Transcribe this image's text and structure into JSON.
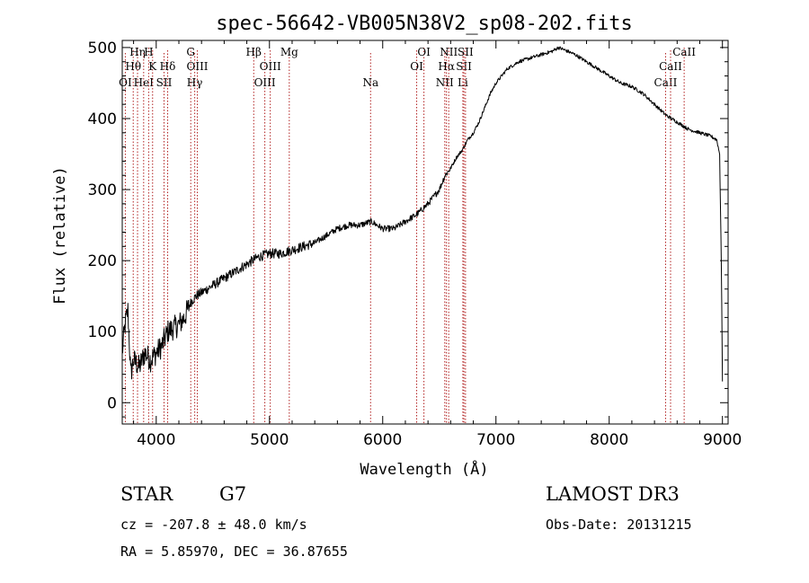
{
  "chart_data": {
    "type": "line",
    "title": "spec-56642-VB005N38V2_sp08-202.fits",
    "xlabel": "Wavelength (Å)",
    "ylabel": "Flux (relative)",
    "xlim": [
      3700,
      9050
    ],
    "ylim": [
      -30,
      510
    ],
    "xticks": [
      4000,
      5000,
      6000,
      7000,
      8000,
      9000
    ],
    "yticks": [
      0,
      100,
      200,
      300,
      400,
      500
    ],
    "series": [
      {
        "name": "flux",
        "x": [
          3700,
          3725,
          3750,
          3775,
          3800,
          3850,
          3900,
          3950,
          4000,
          4050,
          4100,
          4150,
          4200,
          4250,
          4300,
          4350,
          4400,
          4450,
          4500,
          4600,
          4700,
          4800,
          4900,
          5000,
          5100,
          5200,
          5300,
          5400,
          5500,
          5600,
          5700,
          5800,
          5900,
          6000,
          6100,
          6200,
          6300,
          6400,
          6500,
          6550,
          6600,
          6650,
          6700,
          6750,
          6800,
          6850,
          6900,
          6950,
          7000,
          7100,
          7200,
          7300,
          7400,
          7500,
          7550,
          7600,
          7700,
          7800,
          7900,
          8000,
          8100,
          8200,
          8300,
          8400,
          8500,
          8550,
          8600,
          8700,
          8800,
          8900,
          8950,
          8975,
          8990,
          9000
        ],
        "y": [
          70,
          110,
          130,
          40,
          60,
          50,
          70,
          60,
          70,
          80,
          100,
          105,
          110,
          120,
          140,
          150,
          155,
          160,
          165,
          175,
          185,
          195,
          205,
          210,
          210,
          215,
          220,
          225,
          235,
          245,
          250,
          250,
          255,
          245,
          245,
          255,
          265,
          280,
          300,
          320,
          330,
          345,
          355,
          370,
          380,
          395,
          415,
          435,
          450,
          470,
          480,
          485,
          490,
          495,
          500,
          497,
          490,
          480,
          470,
          460,
          450,
          445,
          435,
          420,
          405,
          400,
          395,
          385,
          380,
          375,
          370,
          350,
          200,
          30
        ]
      }
    ],
    "spectral_lines": [
      {
        "name": "OI",
        "x": 3727,
        "row": 3
      },
      {
        "name": "Hθ",
        "x": 3797,
        "row": 2
      },
      {
        "name": "Hη",
        "x": 3835,
        "row": 1
      },
      {
        "name": "HeI",
        "x": 3889,
        "row": 3
      },
      {
        "name": "H",
        "x": 3933,
        "row": 1
      },
      {
        "name": "K",
        "x": 3968,
        "row": 2
      },
      {
        "name": "SII",
        "x": 4069,
        "row": 3
      },
      {
        "name": "Hδ",
        "x": 4101,
        "row": 2
      },
      {
        "name": "G",
        "x": 4305,
        "row": 1
      },
      {
        "name": "Hγ",
        "x": 4340,
        "row": 3
      },
      {
        "name": "OIII",
        "x": 4363,
        "row": 2
      },
      {
        "name": "Hβ",
        "x": 4861,
        "row": 1
      },
      {
        "name": "OIII",
        "x": 4959,
        "row": 3
      },
      {
        "name": "OIII",
        "x": 5007,
        "row": 2
      },
      {
        "name": "Mg",
        "x": 5175,
        "row": 1
      },
      {
        "name": "Na",
        "x": 5893,
        "row": 3
      },
      {
        "name": "OI",
        "x": 6300,
        "row": 2
      },
      {
        "name": "OI",
        "x": 6364,
        "row": 1
      },
      {
        "name": "NII",
        "x": 6548,
        "row": 3
      },
      {
        "name": "Hα",
        "x": 6563,
        "row": 2
      },
      {
        "name": "NII",
        "x": 6583,
        "row": 1
      },
      {
        "name": "Li",
        "x": 6708,
        "row": 3
      },
      {
        "name": "SII",
        "x": 6717,
        "row": 2
      },
      {
        "name": "SII",
        "x": 6731,
        "row": 1
      },
      {
        "name": "CaII",
        "x": 8498,
        "row": 3
      },
      {
        "name": "CaII",
        "x": 8542,
        "row": 2
      },
      {
        "name": "CaII",
        "x": 8662,
        "row": 1
      }
    ]
  },
  "info": {
    "object_class": "STAR",
    "subclass": "G7",
    "survey": "LAMOST DR3",
    "cz": "cz = -207.8 ± 48.0 km/s",
    "obs_date": "Obs-Date: 20131215",
    "radec": "RA =   5.85970, DEC =  36.87655"
  },
  "colors": {
    "line": "#000000",
    "marker": "#b22222"
  }
}
